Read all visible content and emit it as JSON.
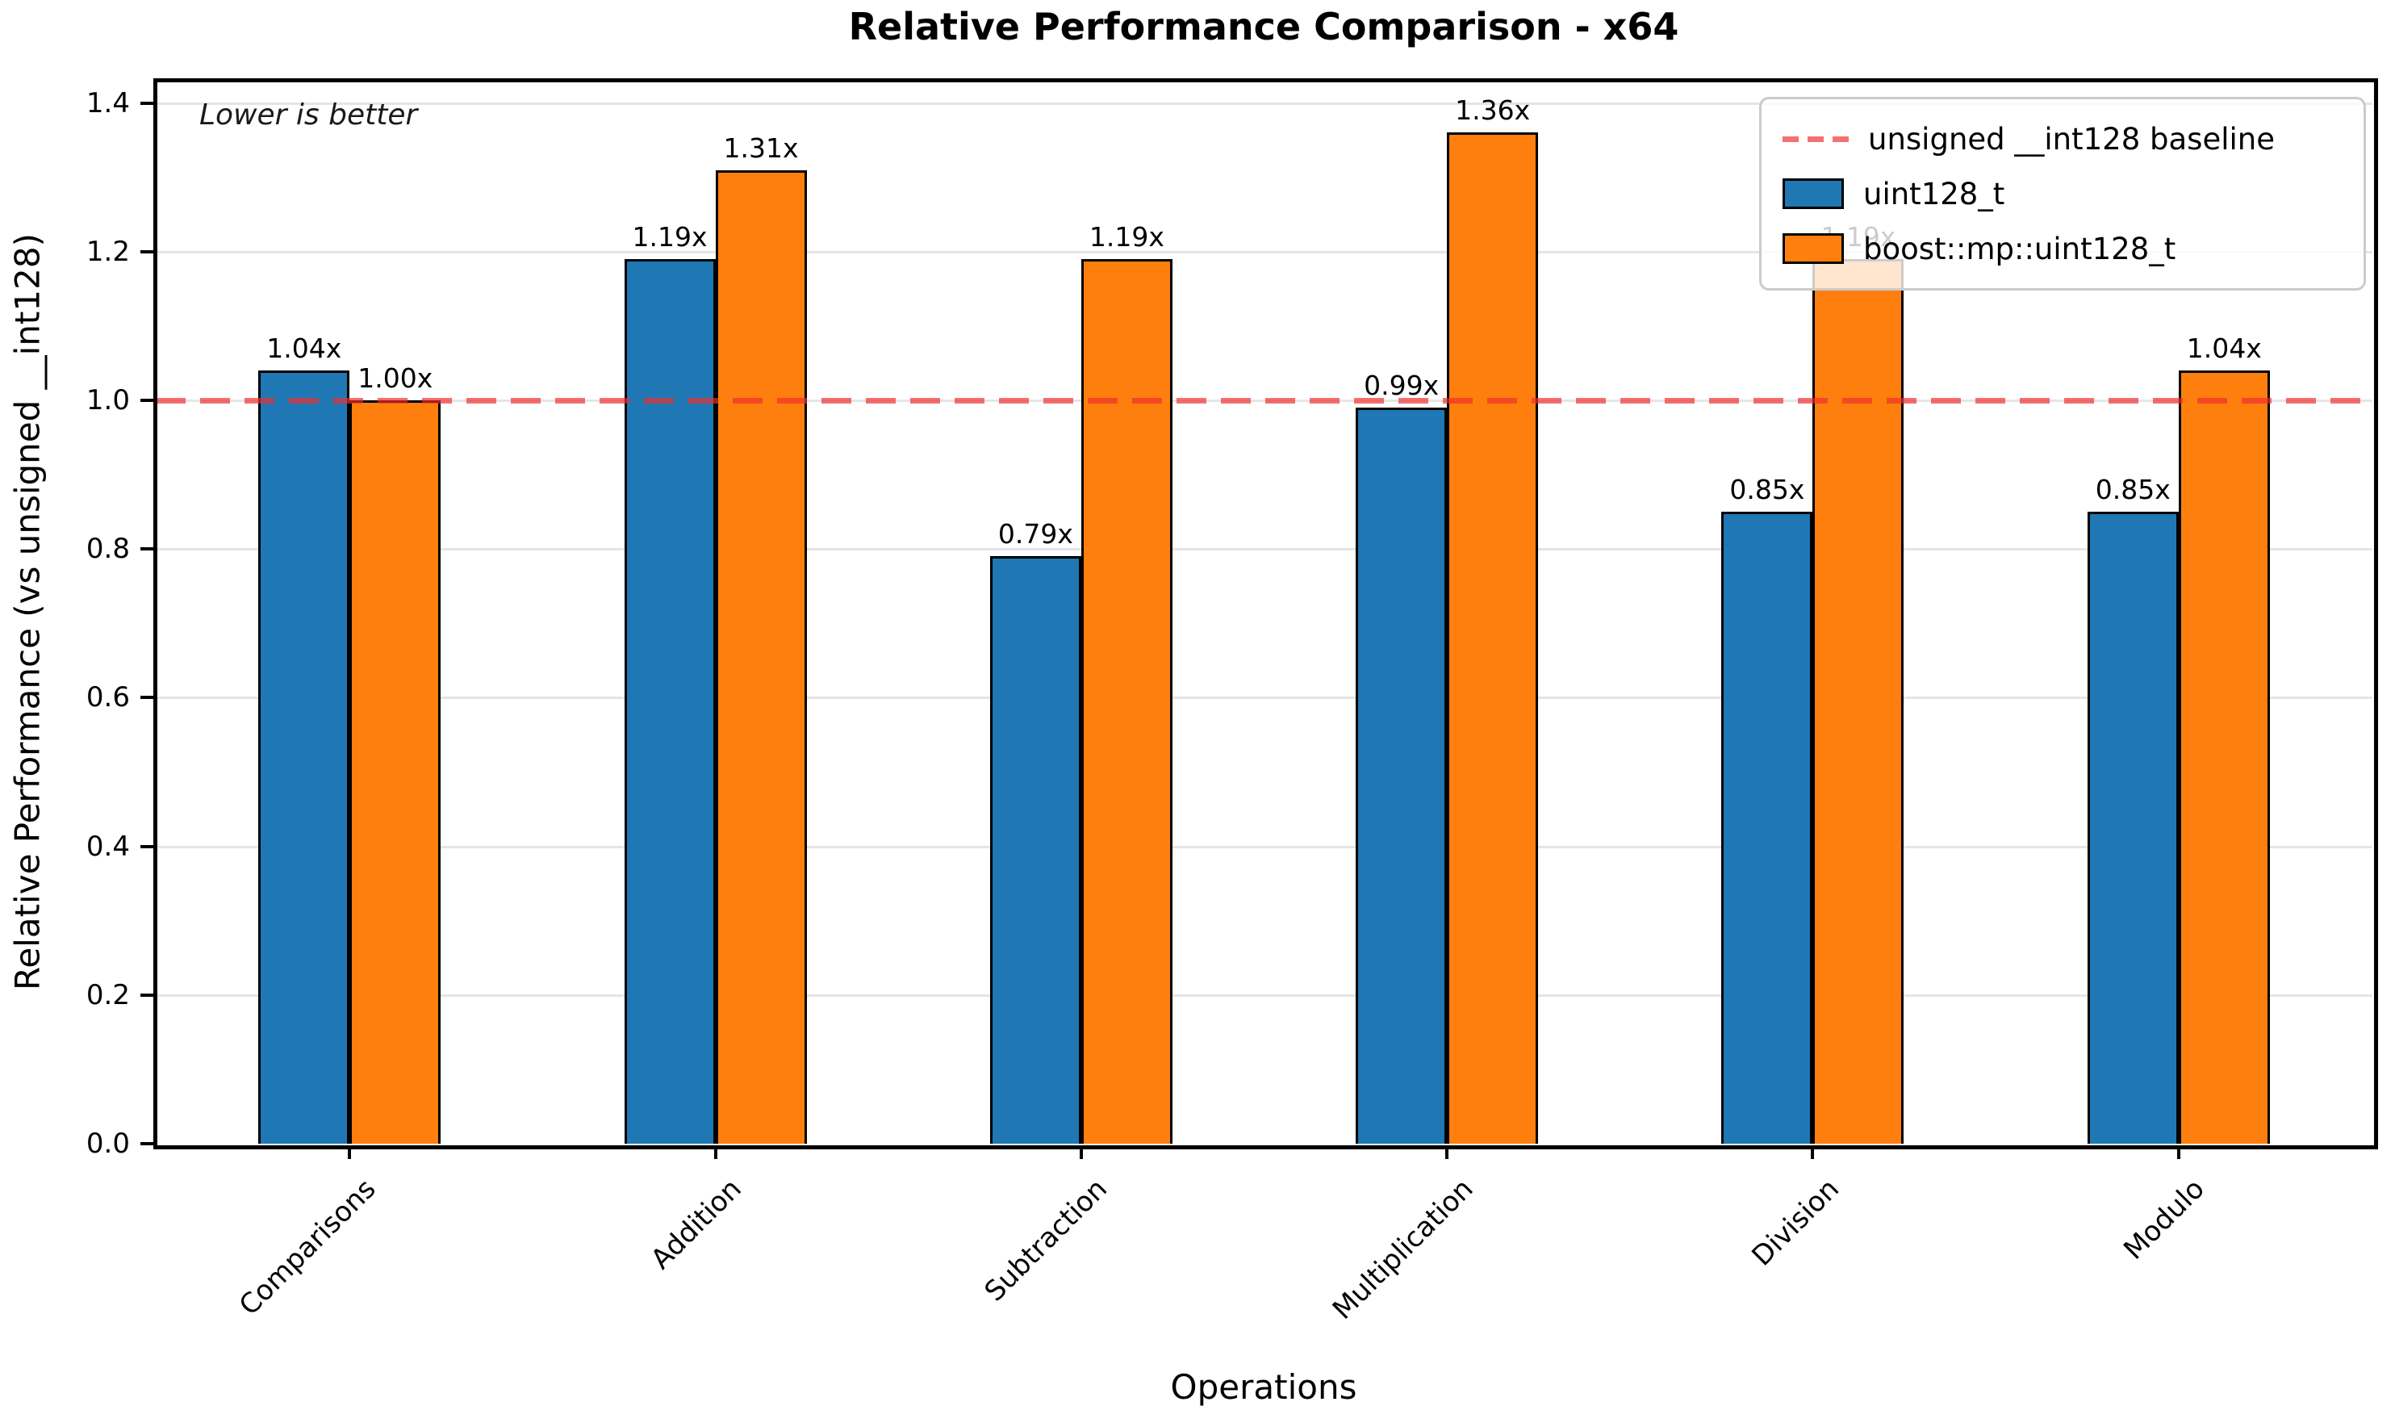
{
  "chart_data": {
    "type": "bar",
    "title": "Relative Performance Comparison - x64",
    "xlabel": "Operations",
    "ylabel": "Relative Performance (vs unsigned __int128)",
    "annotation": "Lower is better",
    "categories": [
      "Comparisons",
      "Addition",
      "Subtraction",
      "Multiplication",
      "Division",
      "Modulo"
    ],
    "series": [
      {
        "name": "uint128_t",
        "color": "#1f77b4",
        "values": [
          1.04,
          1.19,
          0.79,
          0.99,
          0.85,
          0.85
        ],
        "labels": [
          "1.04x",
          "1.19x",
          "0.79x",
          "0.99x",
          "0.85x",
          "0.85x"
        ]
      },
      {
        "name": "boost::mp::uint128_t",
        "color": "#ff7f0e",
        "values": [
          1.0,
          1.31,
          1.19,
          1.36,
          1.19,
          1.04
        ],
        "labels": [
          "1.00x",
          "1.31x",
          "1.19x",
          "1.36x",
          "1.19x",
          "1.04x"
        ]
      }
    ],
    "baseline": {
      "value": 1.0,
      "label": "unsigned __int128 baseline",
      "color": "rgba(240,45,45,0.68)"
    },
    "yticks": [
      "0.0",
      "0.2",
      "0.4",
      "0.6",
      "0.8",
      "1.0",
      "1.2",
      "1.4"
    ],
    "ylim": [
      0,
      1.43
    ],
    "grid": true,
    "legend_position": "upper right",
    "note": "Lower is better"
  }
}
